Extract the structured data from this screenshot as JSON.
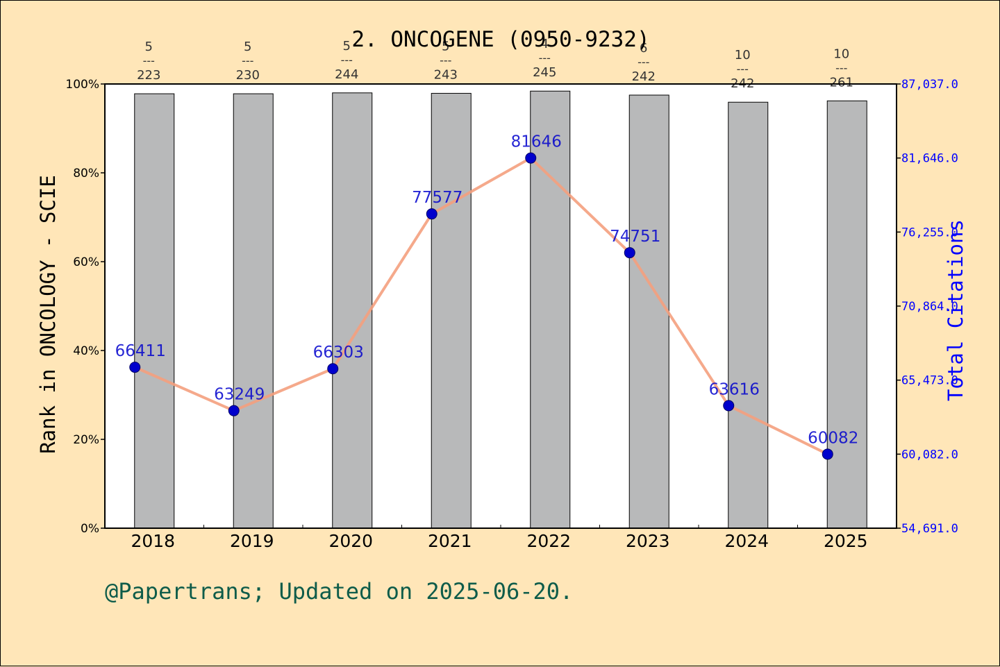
{
  "chart_data": {
    "type": "bar",
    "title": "2. ONCOGENE (0950-9232)",
    "ylabel": "Rank in ONCOLOGY - SCIE",
    "ylabel_right": "Total Citations",
    "categories": [
      "2018",
      "2019",
      "2020",
      "2021",
      "2022",
      "2023",
      "2024",
      "2025"
    ],
    "ylim": [
      0,
      100
    ],
    "y_ticks": [
      "0%",
      "20%",
      "40%",
      "60%",
      "80%",
      "100%"
    ],
    "right_ylim": [
      54691,
      87037
    ],
    "right_ticks": [
      "54,691.0",
      "60,082.0",
      "65,473.0",
      "70,864.0",
      "76,255.0",
      "81,646.0",
      "87,037.0"
    ],
    "series": [
      {
        "type": "bar",
        "values": [
          97.8,
          97.8,
          98.0,
          97.9,
          98.4,
          97.5,
          95.9,
          96.2
        ],
        "rank": [
          "5",
          "5",
          "5",
          "5",
          "4",
          "6",
          "10",
          "10"
        ],
        "total": [
          "223",
          "230",
          "244",
          "243",
          "245",
          "242",
          "242",
          "261"
        ],
        "color": "#b8b9ba"
      },
      {
        "type": "line",
        "values": [
          66411,
          63249,
          66303,
          77577,
          81646,
          74751,
          63616,
          60082
        ],
        "labels": [
          "66411",
          "63249",
          "66303",
          "77577",
          "81646",
          "74751",
          "63616",
          "60082"
        ],
        "color": "#f4a07e",
        "marker_color": "#0000cc"
      }
    ],
    "grid": false
  },
  "footer": {
    "credit": "@Papertrans; Updated on 2025-06-20."
  }
}
